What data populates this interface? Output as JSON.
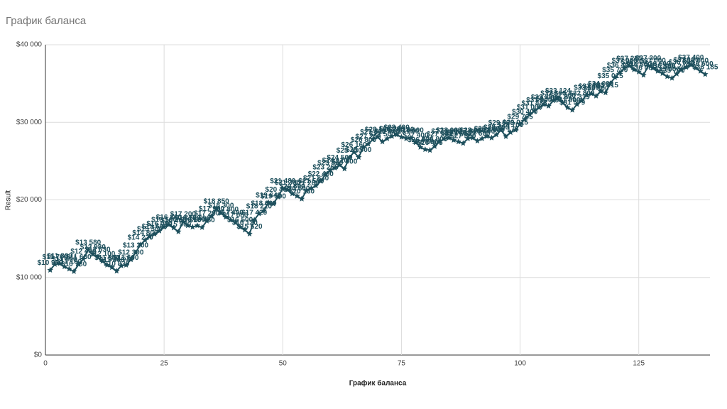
{
  "chart_data": {
    "type": "line",
    "title": "График баланса",
    "x_label": "График баланса",
    "y_label": "Result",
    "xlim": [
      0,
      140
    ],
    "xticks": [
      0,
      25,
      50,
      75,
      100,
      125
    ],
    "ylim": [
      0,
      40000
    ],
    "yticks": [
      {
        "value": 0,
        "label": "$0"
      },
      {
        "value": 10000,
        "label": "$10 000"
      },
      {
        "value": 20000,
        "label": "$20 000"
      },
      {
        "value": 30000,
        "label": "$30 000"
      },
      {
        "value": 40000,
        "label": "$40 000"
      }
    ],
    "grid": true,
    "x": [
      1,
      2,
      3,
      4,
      5,
      6,
      7,
      8,
      9,
      10,
      11,
      12,
      13,
      14,
      15,
      16,
      17,
      18,
      19,
      20,
      21,
      22,
      23,
      24,
      25,
      26,
      27,
      28,
      29,
      30,
      31,
      32,
      33,
      34,
      35,
      36,
      37,
      38,
      39,
      40,
      41,
      42,
      43,
      44,
      45,
      46,
      47,
      48,
      49,
      50,
      51,
      52,
      53,
      54,
      55,
      56,
      57,
      58,
      59,
      60,
      61,
      62,
      63,
      64,
      65,
      66,
      67,
      68,
      69,
      70,
      71,
      72,
      73,
      74,
      75,
      76,
      77,
      78,
      79,
      80,
      81,
      82,
      83,
      84,
      85,
      86,
      87,
      88,
      89,
      90,
      91,
      92,
      93,
      94,
      95,
      96,
      97,
      98,
      99,
      100,
      101,
      102,
      103,
      104,
      105,
      106,
      107,
      108,
      109,
      110,
      111,
      112,
      113,
      114,
      115,
      116,
      117,
      118,
      119,
      120,
      121,
      122,
      123,
      124,
      125,
      126,
      127,
      128,
      129,
      130,
      131,
      132,
      133,
      134,
      135,
      136,
      137,
      138,
      139
    ],
    "series": [
      {
        "color": "#1d4f5c",
        "values": [
          10950,
          11700,
          11800,
          11400,
          11100,
          10780,
          11680,
          12400,
          13580,
          12980,
          12630,
          12100,
          11600,
          11300,
          10830,
          11520,
          11600,
          12300,
          13200,
          14220,
          14800,
          15300,
          15600,
          16000,
          16500,
          16800,
          16400,
          15900,
          17200,
          16700,
          16500,
          16690,
          16450,
          17290,
          17900,
          18850,
          18300,
          17800,
          17400,
          17080,
          16500,
          16120,
          15620,
          17420,
          18220,
          18600,
          19640,
          19500,
          20400,
          21480,
          21300,
          20800,
          20500,
          20130,
          21200,
          21500,
          21830,
          22400,
          23265,
          23800,
          24120,
          24500,
          24000,
          25430,
          26160,
          25500,
          26800,
          27200,
          27800,
          28100,
          27500,
          27900,
          28200,
          28400,
          28100,
          27900,
          28000,
          27400,
          26800,
          26500,
          26405,
          26900,
          27500,
          27900,
          28000,
          27700,
          27500,
          27300,
          27900,
          28000,
          27600,
          27900,
          28200,
          28000,
          28400,
          29000,
          28175,
          28700,
          29015,
          29765,
          30400,
          31000,
          31488,
          31900,
          32300,
          32100,
          32800,
          33124,
          32500,
          31900,
          31579,
          32319,
          32800,
          33500,
          33700,
          33400,
          34000,
          33815,
          35015,
          35790,
          36400,
          37000,
          37285,
          36800,
          36500,
          36085,
          37300,
          37000,
          36600,
          36300,
          35900,
          35700,
          36245,
          36800,
          37100,
          37400,
          37000,
          36600,
          36185
        ],
        "value_labels": [
          "$10 950",
          "$11 700",
          "$11 800",
          "$11 400",
          "$11 100",
          "$10 780",
          "$11 680",
          "$12 400",
          "$13 580",
          "$12 980",
          "$12 630",
          "$12 100",
          "$11 600",
          "$11 300",
          "$10 830",
          "$11 520",
          "$11 600",
          "$12 300",
          "$13 200",
          "$14 220",
          "$14 800",
          "$15 300",
          "$15 600",
          "$16 000",
          "$16 500",
          "$16 800",
          "$16 400",
          "$15 900",
          "$17 200",
          "$16 700",
          "$16 500",
          "$16 690",
          "$16 450",
          "$17 290",
          "$17 900",
          "$18 850",
          "$18 300",
          "$17 800",
          "$17 400",
          "$17 080",
          "$16 500",
          "$16 120",
          "$15 620",
          "$17 420",
          "$18 220",
          "$18 600",
          "$19 640",
          "$19 500",
          "$20 400",
          "$21 480",
          "$21 300",
          "$20 800",
          "$20 500",
          "$20 130",
          "$21 200",
          "$21 500",
          "$21 830",
          "$22 400",
          "$23 265",
          "$23 800",
          "$24 120",
          "$24 500",
          "$24 000",
          "$25 430",
          "$26 160",
          "$25 500",
          "$26 800",
          "$27 200",
          "$27 800",
          "$28 100",
          "$27 500",
          "$27 900",
          "$28 200",
          "$28 400",
          "$28 100",
          "$27 900",
          "$28 000",
          "$27 400",
          "$26 800",
          "$26 500",
          "$26 405",
          "$26 900",
          "$27 500",
          "$27 900",
          "$28 000",
          "$27 700",
          "$27 500",
          "$27 300",
          "$27 900",
          "$28 000",
          "$27 600",
          "$27 900",
          "$28 200",
          "$28 000",
          "$28 400",
          "$29 000",
          "$28 175",
          "$28 700",
          "$29 015",
          "$29 765",
          "$30 400",
          "$31 000",
          "$31 488",
          "$31 900",
          "$32 300",
          "$32 100",
          "$32 800",
          "$33 124",
          "$32 500",
          "$31 900",
          "$31 579",
          "$32 319",
          "$32 800",
          "$33 500",
          "$33 700",
          "$33 400",
          "$34 000",
          "$33 815",
          "$35 015",
          "$35 790",
          "$36 400",
          "$37 000",
          "$37 285",
          "$36 800",
          "$36 500",
          "$36 085",
          "$37 300",
          "$37 000",
          "$36 600",
          "$36 300",
          "$35 900",
          "$35 700",
          "$36 245",
          "$36 800",
          "$37 100",
          "$37 400",
          "$37 000",
          "$36 600",
          "$36 185"
        ]
      }
    ]
  }
}
